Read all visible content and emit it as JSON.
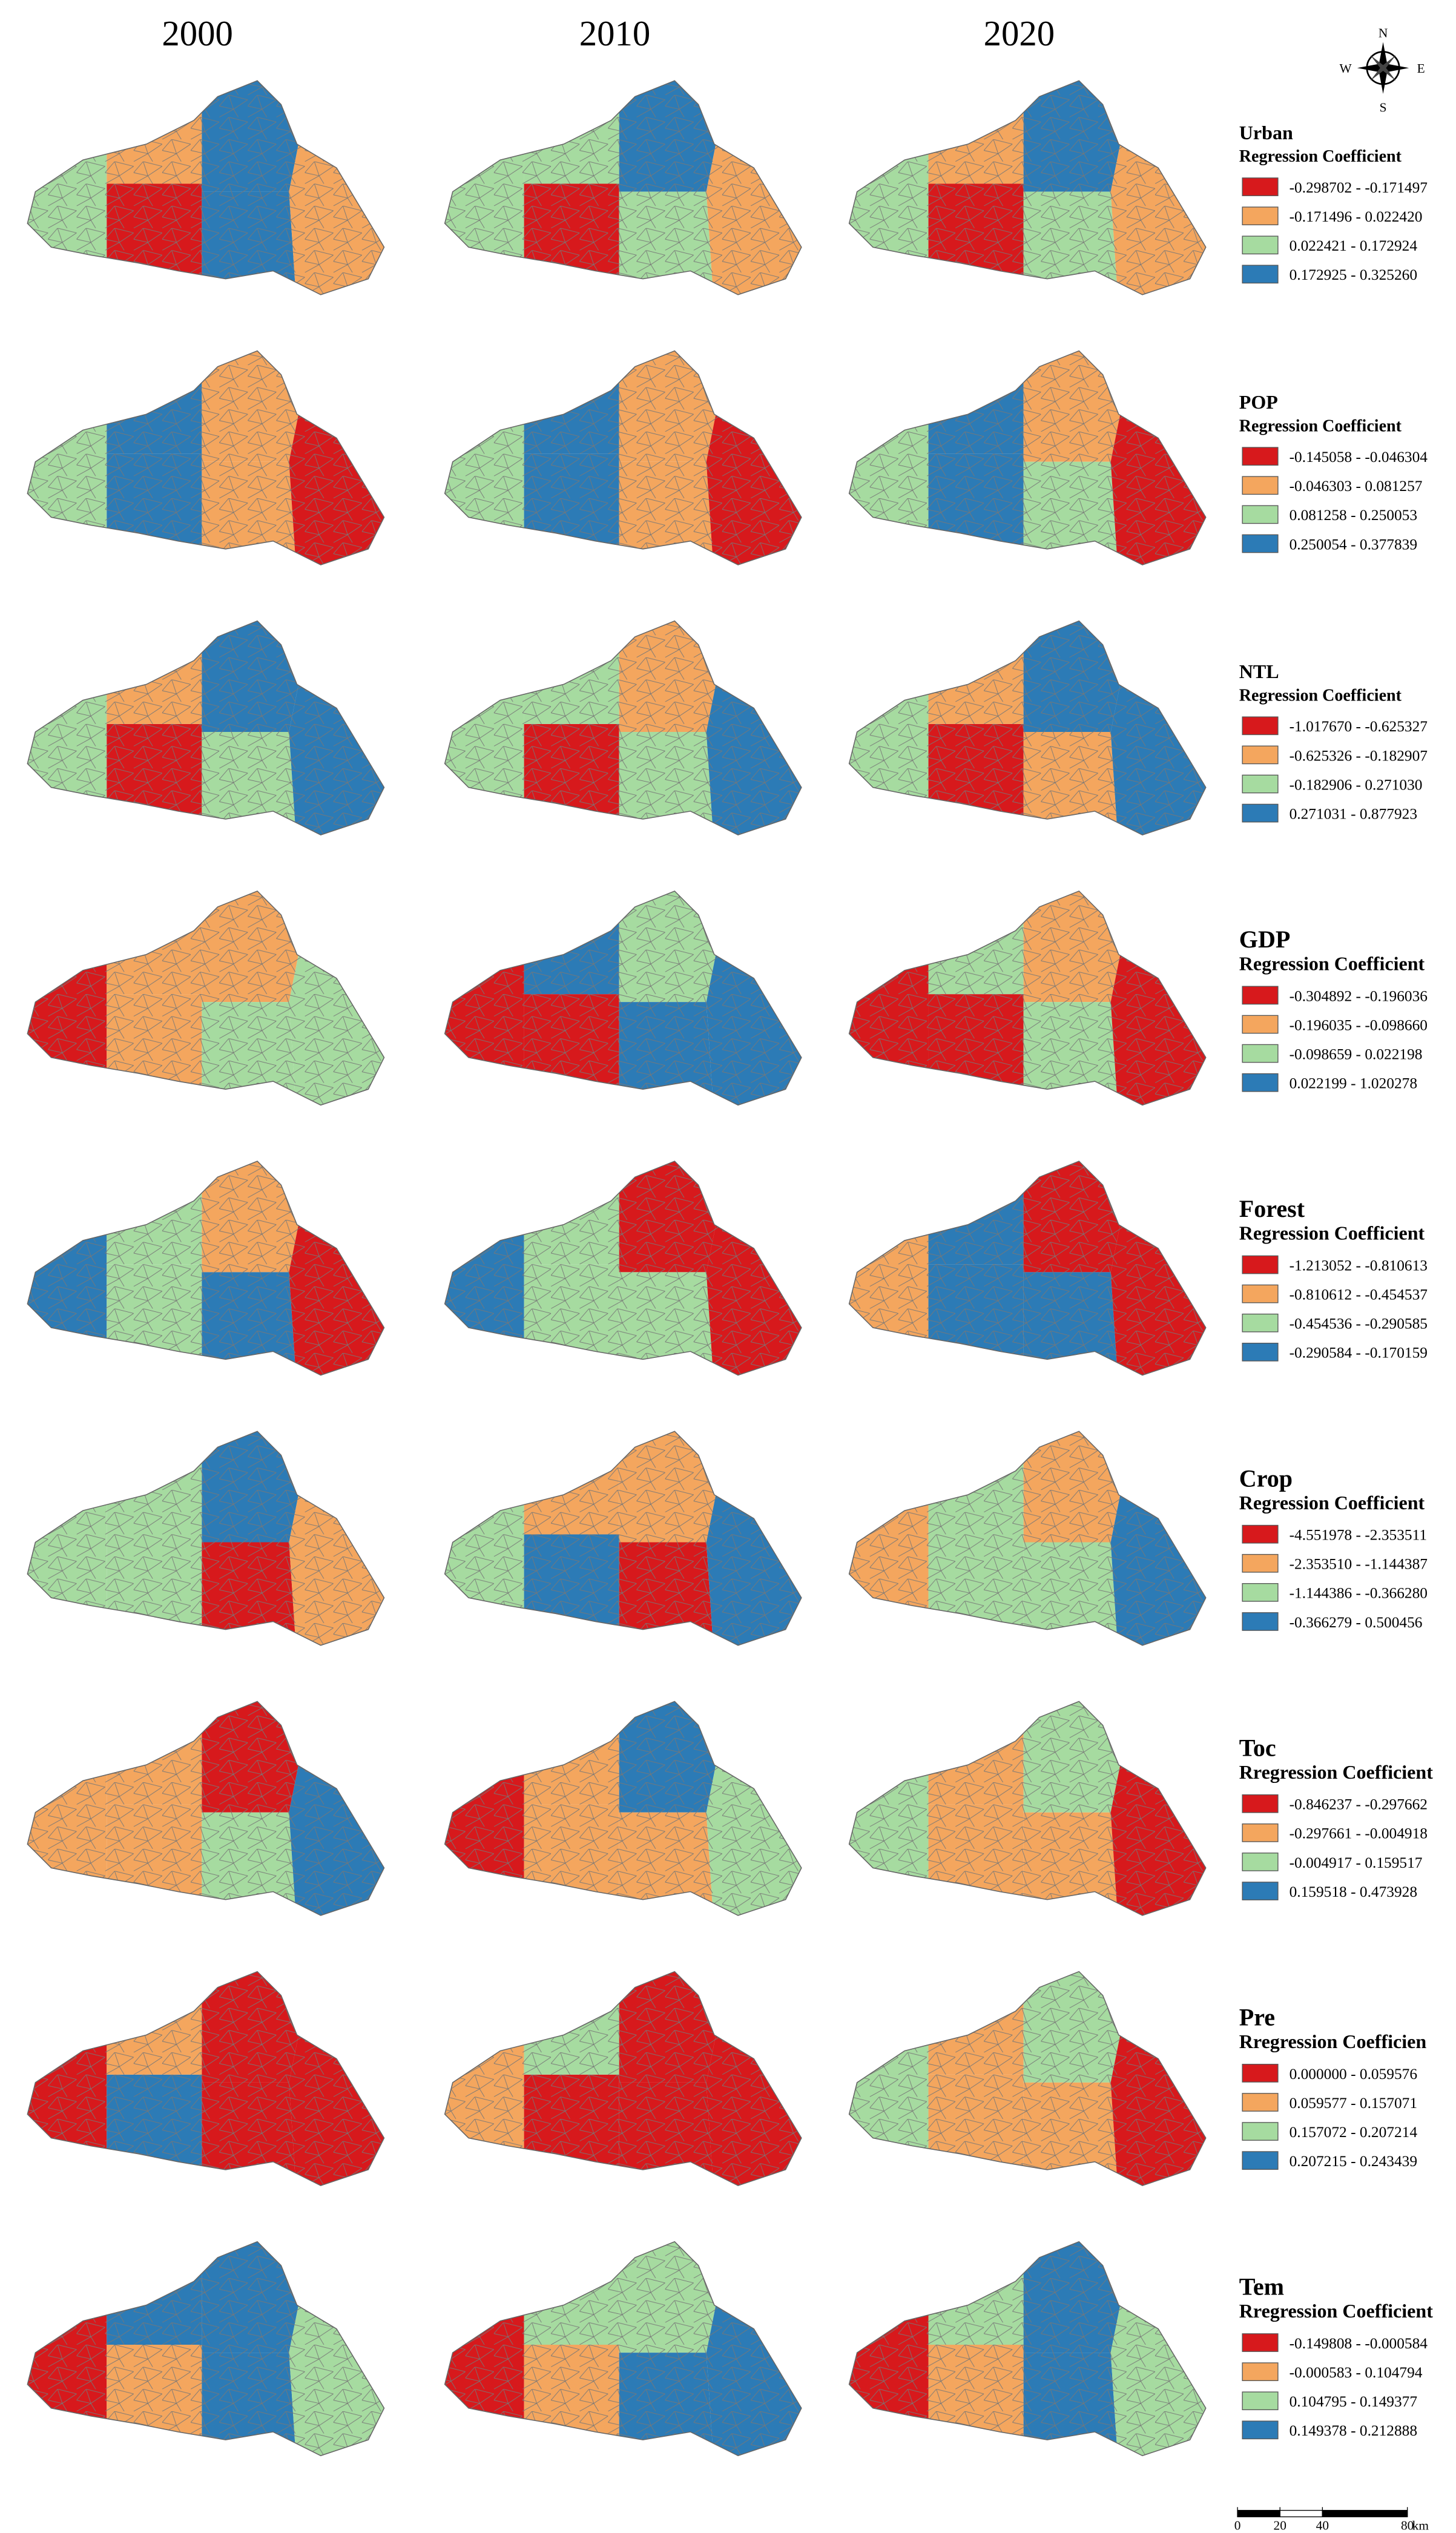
{
  "columns": [
    "2000",
    "2010",
    "2020"
  ],
  "compass": {
    "north": "N",
    "south": "S",
    "east": "E",
    "west": "W"
  },
  "scale_bar": {
    "ticks": [
      0,
      20,
      40,
      80
    ],
    "unit": "km"
  },
  "legends": [
    {
      "title": "Urban",
      "subtitle": "Regression Coefficient",
      "classes": [
        {
          "label": "-0.298702 - -0.171497",
          "color": "#d7191c"
        },
        {
          "label": "-0.171496 - 0.022420",
          "color": "#f4a65e"
        },
        {
          "label": "0.022421 - 0.172924",
          "color": "#a6dba0"
        },
        {
          "label": "0.172925 - 0.325260",
          "color": "#2c7bb6"
        }
      ]
    },
    {
      "title": "POP",
      "subtitle": "Regression Coefficient",
      "classes": [
        {
          "label": "-0.145058 - -0.046304",
          "color": "#d7191c"
        },
        {
          "label": "-0.046303 - 0.081257",
          "color": "#f4a65e"
        },
        {
          "label": "0.081258 - 0.250053",
          "color": "#a6dba0"
        },
        {
          "label": "0.250054 - 0.377839",
          "color": "#2c7bb6"
        }
      ]
    },
    {
      "title": "NTL",
      "subtitle": "Regression Coefficient",
      "classes": [
        {
          "label": "-1.017670 - -0.625327",
          "color": "#d7191c"
        },
        {
          "label": "-0.625326 - -0.182907",
          "color": "#f4a65e"
        },
        {
          "label": "-0.182906 - 0.271030",
          "color": "#a6dba0"
        },
        {
          "label": "0.271031 - 0.877923",
          "color": "#2c7bb6"
        }
      ]
    },
    {
      "title": "GDP",
      "subtitle": "Regression Coefficient",
      "classes": [
        {
          "label": "-0.304892 - -0.196036",
          "color": "#d7191c"
        },
        {
          "label": "-0.196035 - -0.098660",
          "color": "#f4a65e"
        },
        {
          "label": "-0.098659 - 0.022198",
          "color": "#a6dba0"
        },
        {
          "label": "0.022199 - 1.020278",
          "color": "#2c7bb6"
        }
      ]
    },
    {
      "title": "Forest",
      "subtitle": "Regression Coefficient",
      "classes": [
        {
          "label": "-1.213052 - -0.810613",
          "color": "#d7191c"
        },
        {
          "label": "-0.810612 - -0.454537",
          "color": "#f4a65e"
        },
        {
          "label": "-0.454536 - -0.290585",
          "color": "#a6dba0"
        },
        {
          "label": "-0.290584 - -0.170159",
          "color": "#2c7bb6"
        }
      ]
    },
    {
      "title": "Crop",
      "subtitle": "Regression Coefficient",
      "classes": [
        {
          "label": "-4.551978 - -2.353511",
          "color": "#d7191c"
        },
        {
          "label": "-2.353510 - -1.144387",
          "color": "#f4a65e"
        },
        {
          "label": "-1.144386 - -0.366280",
          "color": "#a6dba0"
        },
        {
          "label": "-0.366279 - 0.500456",
          "color": "#2c7bb6"
        }
      ]
    },
    {
      "title": "Toc",
      "subtitle": "Rregression Coefficient",
      "classes": [
        {
          "label": "-0.846237 - -0.297662",
          "color": "#d7191c"
        },
        {
          "label": "-0.297661 - -0.004918",
          "color": "#f4a65e"
        },
        {
          "label": "-0.004917 - 0.159517",
          "color": "#a6dba0"
        },
        {
          "label": "0.159518 - 0.473928",
          "color": "#2c7bb6"
        }
      ]
    },
    {
      "title": "Pre",
      "subtitle": "Rregression Coefficien",
      "classes": [
        {
          "label": "0.000000 - 0.059576",
          "color": "#d7191c"
        },
        {
          "label": "0.059577 - 0.157071",
          "color": "#f4a65e"
        },
        {
          "label": "0.157072 - 0.207214",
          "color": "#a6dba0"
        },
        {
          "label": "0.207215 - 0.243439",
          "color": "#2c7bb6"
        }
      ]
    },
    {
      "title": "Tem",
      "subtitle": "Rregression Coefficient",
      "classes": [
        {
          "label": "-0.149808 - -0.000584",
          "color": "#d7191c"
        },
        {
          "label": "-0.000583 - 0.104794",
          "color": "#f4a65e"
        },
        {
          "label": "0.104795 - 0.149377",
          "color": "#a6dba0"
        },
        {
          "label": "0.149378 - 0.212888",
          "color": "#2c7bb6"
        }
      ]
    }
  ]
}
